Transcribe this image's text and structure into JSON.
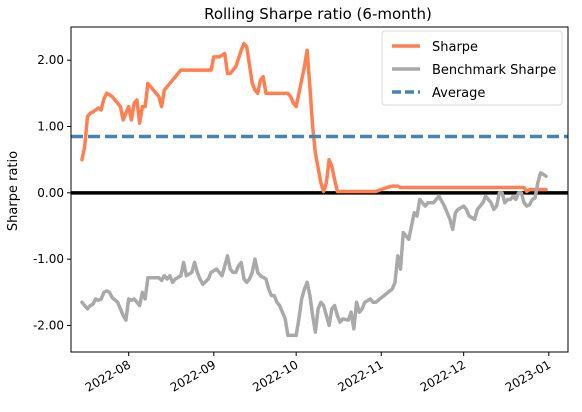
{
  "chart_data": {
    "type": "line",
    "title": "Rolling Sharpe ratio (6-month)",
    "xlabel": "",
    "ylabel": "Sharpe ratio",
    "xlim": [
      "2022-07-11",
      "2023-01-08"
    ],
    "ylim": [
      -2.4,
      2.5
    ],
    "y_ticks": [
      {
        "value": 2.0,
        "label": "2.00"
      },
      {
        "value": 1.0,
        "label": "1.00"
      },
      {
        "value": 0.0,
        "label": "0.00"
      },
      {
        "value": -1.0,
        "label": "-1.00"
      },
      {
        "value": -2.0,
        "label": "-2.00"
      }
    ],
    "x_ticks": [
      {
        "value": "2022-08-01",
        "label": "2022-08"
      },
      {
        "value": "2022-09-01",
        "label": "2022-09"
      },
      {
        "value": "2022-10-01",
        "label": "2022-10"
      },
      {
        "value": "2022-11-01",
        "label": "2022-11"
      },
      {
        "value": "2022-12-01",
        "label": "2022-12"
      },
      {
        "value": "2023-01-01",
        "label": "2023-01"
      }
    ],
    "legend_position": "top-right",
    "grid": false,
    "zero_line": {
      "value": 0.0,
      "color": "#000000"
    },
    "series": [
      {
        "name": "Sharpe",
        "color": "#ff7f50",
        "points": [
          [
            "2022-07-15",
            0.5
          ],
          [
            "2022-07-16",
            0.7
          ],
          [
            "2022-07-17",
            1.15
          ],
          [
            "2022-07-18",
            1.2
          ],
          [
            "2022-07-19",
            1.22
          ],
          [
            "2022-07-20",
            1.25
          ],
          [
            "2022-07-21",
            1.28
          ],
          [
            "2022-07-22",
            1.25
          ],
          [
            "2022-07-23",
            1.42
          ],
          [
            "2022-07-24",
            1.5
          ],
          [
            "2022-07-25",
            1.48
          ],
          [
            "2022-07-26",
            1.45
          ],
          [
            "2022-07-28",
            1.35
          ],
          [
            "2022-07-29",
            1.3
          ],
          [
            "2022-07-30",
            1.1
          ],
          [
            "2022-08-01",
            1.3
          ],
          [
            "2022-08-02",
            1.1
          ],
          [
            "2022-08-03",
            1.35
          ],
          [
            "2022-08-04",
            1.4
          ],
          [
            "2022-08-05",
            1.05
          ],
          [
            "2022-08-06",
            1.3
          ],
          [
            "2022-08-07",
            1.3
          ],
          [
            "2022-08-08",
            1.65
          ],
          [
            "2022-08-09",
            1.6
          ],
          [
            "2022-08-10",
            1.55
          ],
          [
            "2022-08-11",
            1.5
          ],
          [
            "2022-08-12",
            1.45
          ],
          [
            "2022-08-13",
            1.3
          ],
          [
            "2022-08-14",
            1.55
          ],
          [
            "2022-08-15",
            1.6
          ],
          [
            "2022-08-17",
            1.7
          ],
          [
            "2022-08-20",
            1.85
          ],
          [
            "2022-08-24",
            1.85
          ],
          [
            "2022-08-27",
            1.85
          ],
          [
            "2022-08-31",
            1.85
          ],
          [
            "2022-09-01",
            2.05
          ],
          [
            "2022-09-03",
            2.05
          ],
          [
            "2022-09-05",
            2.1
          ],
          [
            "2022-09-06",
            1.8
          ],
          [
            "2022-09-07",
            1.8
          ],
          [
            "2022-09-09",
            1.9
          ],
          [
            "2022-09-11",
            2.15
          ],
          [
            "2022-09-12",
            2.25
          ],
          [
            "2022-09-13",
            2.2
          ],
          [
            "2022-09-15",
            1.65
          ],
          [
            "2022-09-16",
            1.55
          ],
          [
            "2022-09-17",
            1.5
          ],
          [
            "2022-09-18",
            1.7
          ],
          [
            "2022-09-19",
            1.75
          ],
          [
            "2022-09-20",
            1.5
          ],
          [
            "2022-09-23",
            1.5
          ],
          [
            "2022-09-26",
            1.5
          ],
          [
            "2022-09-28",
            1.5
          ],
          [
            "2022-09-29",
            1.45
          ],
          [
            "2022-09-30",
            1.35
          ],
          [
            "2022-10-01",
            1.3
          ],
          [
            "2022-10-02",
            1.5
          ],
          [
            "2022-10-03",
            1.7
          ],
          [
            "2022-10-04",
            1.9
          ],
          [
            "2022-10-05",
            2.15
          ],
          [
            "2022-10-06",
            1.6
          ],
          [
            "2022-10-07",
            1.0
          ],
          [
            "2022-10-08",
            0.6
          ],
          [
            "2022-10-10",
            0.15
          ],
          [
            "2022-10-11",
            0.02
          ],
          [
            "2022-10-12",
            0.15
          ],
          [
            "2022-10-13",
            0.5
          ],
          [
            "2022-10-14",
            0.4
          ],
          [
            "2022-10-15",
            0.2
          ],
          [
            "2022-10-16",
            0.02
          ],
          [
            "2022-10-18",
            0.02
          ],
          [
            "2022-10-22",
            0.02
          ],
          [
            "2022-10-26",
            0.02
          ],
          [
            "2022-10-30",
            0.02
          ],
          [
            "2022-11-01",
            0.05
          ],
          [
            "2022-11-03",
            0.08
          ],
          [
            "2022-11-05",
            0.1
          ],
          [
            "2022-11-07",
            0.1
          ],
          [
            "2022-11-08",
            0.08
          ],
          [
            "2022-11-12",
            0.08
          ],
          [
            "2022-11-18",
            0.08
          ],
          [
            "2022-11-24",
            0.08
          ],
          [
            "2022-11-30",
            0.08
          ],
          [
            "2022-12-06",
            0.08
          ],
          [
            "2022-12-12",
            0.08
          ],
          [
            "2022-12-18",
            0.08
          ],
          [
            "2022-12-23",
            0.08
          ],
          [
            "2022-12-24",
            0.02
          ],
          [
            "2022-12-25",
            0.05
          ],
          [
            "2022-12-28",
            0.05
          ],
          [
            "2022-12-31",
            0.05
          ]
        ]
      },
      {
        "name": "Benchmark Sharpe",
        "color": "#a9a9a9",
        "points": [
          [
            "2022-07-15",
            -1.65
          ],
          [
            "2022-07-16",
            -1.7
          ],
          [
            "2022-07-17",
            -1.75
          ],
          [
            "2022-07-18",
            -1.7
          ],
          [
            "2022-07-19",
            -1.68
          ],
          [
            "2022-07-20",
            -1.6
          ],
          [
            "2022-07-21",
            -1.62
          ],
          [
            "2022-07-22",
            -1.6
          ],
          [
            "2022-07-23",
            -1.5
          ],
          [
            "2022-07-24",
            -1.48
          ],
          [
            "2022-07-25",
            -1.5
          ],
          [
            "2022-07-26",
            -1.58
          ],
          [
            "2022-07-28",
            -1.65
          ],
          [
            "2022-07-29",
            -1.75
          ],
          [
            "2022-07-30",
            -1.85
          ],
          [
            "2022-07-31",
            -1.92
          ],
          [
            "2022-08-01",
            -1.6
          ],
          [
            "2022-08-02",
            -1.62
          ],
          [
            "2022-08-03",
            -1.6
          ],
          [
            "2022-08-04",
            -1.65
          ],
          [
            "2022-08-05",
            -1.7
          ],
          [
            "2022-08-06",
            -1.5
          ],
          [
            "2022-08-07",
            -1.6
          ],
          [
            "2022-08-08",
            -1.28
          ],
          [
            "2022-08-10",
            -1.28
          ],
          [
            "2022-08-12",
            -1.28
          ],
          [
            "2022-08-13",
            -1.32
          ],
          [
            "2022-08-14",
            -1.25
          ],
          [
            "2022-08-15",
            -1.3
          ],
          [
            "2022-08-16",
            -1.25
          ],
          [
            "2022-08-17",
            -1.35
          ],
          [
            "2022-08-18",
            -1.3
          ],
          [
            "2022-08-20",
            -1.25
          ],
          [
            "2022-08-21",
            -1.05
          ],
          [
            "2022-08-22",
            -1.25
          ],
          [
            "2022-08-24",
            -1.2
          ],
          [
            "2022-08-25",
            -1.05
          ],
          [
            "2022-08-26",
            -1.2
          ],
          [
            "2022-08-27",
            -1.3
          ],
          [
            "2022-08-28",
            -1.38
          ],
          [
            "2022-08-30",
            -1.3
          ],
          [
            "2022-08-31",
            -1.2
          ],
          [
            "2022-09-02",
            -1.15
          ],
          [
            "2022-09-03",
            -1.2
          ],
          [
            "2022-09-04",
            -1.25
          ],
          [
            "2022-09-05",
            -1.1
          ],
          [
            "2022-09-06",
            -0.95
          ],
          [
            "2022-09-07",
            -1.15
          ],
          [
            "2022-09-08",
            -1.2
          ],
          [
            "2022-09-09",
            -1.2
          ],
          [
            "2022-09-10",
            -1.1
          ],
          [
            "2022-09-11",
            -1.05
          ],
          [
            "2022-09-12",
            -1.3
          ],
          [
            "2022-09-13",
            -1.35
          ],
          [
            "2022-09-14",
            -1.3
          ],
          [
            "2022-09-15",
            -1.2
          ],
          [
            "2022-09-16",
            -1.0
          ],
          [
            "2022-09-17",
            -1.2
          ],
          [
            "2022-09-18",
            -1.25
          ],
          [
            "2022-09-20",
            -1.3
          ],
          [
            "2022-09-21",
            -1.45
          ],
          [
            "2022-09-22",
            -1.55
          ],
          [
            "2022-09-23",
            -1.55
          ],
          [
            "2022-09-24",
            -1.65
          ],
          [
            "2022-09-25",
            -1.7
          ],
          [
            "2022-09-27",
            -1.9
          ],
          [
            "2022-09-28",
            -2.15
          ],
          [
            "2022-09-30",
            -2.15
          ],
          [
            "2022-10-01",
            -2.15
          ],
          [
            "2022-10-02",
            -1.9
          ],
          [
            "2022-10-03",
            -1.6
          ],
          [
            "2022-10-04",
            -1.45
          ],
          [
            "2022-10-05",
            -1.35
          ],
          [
            "2022-10-06",
            -1.55
          ],
          [
            "2022-10-07",
            -1.85
          ],
          [
            "2022-10-08",
            -2.1
          ],
          [
            "2022-10-09",
            -1.75
          ],
          [
            "2022-10-10",
            -1.65
          ],
          [
            "2022-10-11",
            -1.7
          ],
          [
            "2022-10-12",
            -1.85
          ],
          [
            "2022-10-13",
            -2.0
          ],
          [
            "2022-10-14",
            -1.75
          ],
          [
            "2022-10-15",
            -1.7
          ],
          [
            "2022-10-16",
            -1.85
          ],
          [
            "2022-10-17",
            -1.95
          ],
          [
            "2022-10-18",
            -1.9
          ],
          [
            "2022-10-20",
            -1.92
          ],
          [
            "2022-10-21",
            -1.8
          ],
          [
            "2022-10-22",
            -2.05
          ],
          [
            "2022-10-23",
            -1.65
          ],
          [
            "2022-10-24",
            -1.8
          ],
          [
            "2022-10-25",
            -1.75
          ],
          [
            "2022-10-26",
            -1.65
          ],
          [
            "2022-10-28",
            -1.6
          ],
          [
            "2022-10-29",
            -1.65
          ],
          [
            "2022-10-30",
            -1.65
          ],
          [
            "2022-11-02",
            -1.55
          ],
          [
            "2022-11-05",
            -1.45
          ],
          [
            "2022-11-06",
            -1.35
          ],
          [
            "2022-11-07",
            -0.95
          ],
          [
            "2022-11-08",
            -1.15
          ],
          [
            "2022-11-09",
            -0.6
          ],
          [
            "2022-11-10",
            -0.65
          ],
          [
            "2022-11-11",
            -0.7
          ],
          [
            "2022-11-12",
            -0.5
          ],
          [
            "2022-11-13",
            -0.3
          ],
          [
            "2022-11-14",
            -0.35
          ],
          [
            "2022-11-15",
            -0.1
          ],
          [
            "2022-11-16",
            -0.15
          ],
          [
            "2022-11-17",
            -0.2
          ],
          [
            "2022-11-18",
            -0.15
          ],
          [
            "2022-11-20",
            -0.15
          ],
          [
            "2022-11-22",
            -0.05
          ],
          [
            "2022-11-24",
            -0.2
          ],
          [
            "2022-11-26",
            -0.4
          ],
          [
            "2022-11-27",
            -0.55
          ],
          [
            "2022-11-28",
            -0.3
          ],
          [
            "2022-11-29",
            -0.25
          ],
          [
            "2022-12-01",
            -0.2
          ],
          [
            "2022-12-02",
            -0.25
          ],
          [
            "2022-12-03",
            -0.35
          ],
          [
            "2022-12-05",
            -0.4
          ],
          [
            "2022-12-06",
            -0.25
          ],
          [
            "2022-12-07",
            -0.2
          ],
          [
            "2022-12-08",
            -0.15
          ],
          [
            "2022-12-09",
            -0.05
          ],
          [
            "2022-12-10",
            -0.1
          ],
          [
            "2022-12-11",
            -0.15
          ],
          [
            "2022-12-12",
            -0.25
          ],
          [
            "2022-12-13",
            -0.2
          ],
          [
            "2022-12-14",
            0.0
          ],
          [
            "2022-12-15",
            0.0
          ],
          [
            "2022-12-16",
            -0.15
          ],
          [
            "2022-12-17",
            -0.1
          ],
          [
            "2022-12-18",
            -0.1
          ],
          [
            "2022-12-19",
            -0.05
          ],
          [
            "2022-12-20",
            -0.1
          ],
          [
            "2022-12-21",
            0.0
          ],
          [
            "2022-12-22",
            0.0
          ],
          [
            "2022-12-23",
            -0.15
          ],
          [
            "2022-12-24",
            -0.2
          ],
          [
            "2022-12-25",
            -0.18
          ],
          [
            "2022-12-26",
            -0.1
          ],
          [
            "2022-12-27",
            -0.08
          ],
          [
            "2022-12-28",
            0.15
          ],
          [
            "2022-12-29",
            0.3
          ],
          [
            "2022-12-30",
            0.28
          ],
          [
            "2022-12-31",
            0.25
          ]
        ]
      }
    ],
    "reference_lines": [
      {
        "name": "Average",
        "value": 0.85,
        "color": "#4682b4",
        "style": "dashed"
      }
    ]
  }
}
